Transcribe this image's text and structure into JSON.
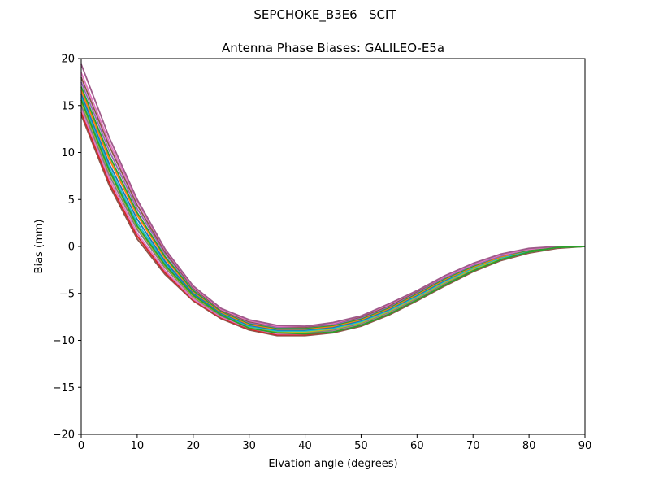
{
  "figure": {
    "suptitle": "SEPCHOKE_B3E6   SCIT"
  },
  "chart_data": {
    "type": "line",
    "title": "Antenna Phase Biases: GALILEO-E5a",
    "xlabel": "Elvation angle (degrees)",
    "ylabel": "Bias (mm)",
    "xlim": [
      0,
      90
    ],
    "ylim": [
      -20,
      20
    ],
    "xticks": [
      0,
      10,
      20,
      30,
      40,
      50,
      60,
      70,
      80,
      90
    ],
    "yticks": [
      -20,
      -15,
      -10,
      -5,
      0,
      5,
      10,
      15,
      20
    ],
    "xtick_labels": [
      "0",
      "10",
      "20",
      "30",
      "40",
      "50",
      "60",
      "70",
      "80",
      "90"
    ],
    "ytick_labels": [
      "−20",
      "−15",
      "−10",
      "−5",
      "0",
      "5",
      "10",
      "15",
      "20"
    ],
    "grid": false,
    "legend": "none",
    "x": [
      0,
      5,
      10,
      15,
      20,
      25,
      30,
      35,
      40,
      45,
      50,
      55,
      60,
      65,
      70,
      75,
      80,
      85,
      90
    ],
    "series": [
      {
        "color": "#8c564b",
        "values": [
          14.0,
          6.5,
          0.8,
          -3.0,
          -5.8,
          -7.7,
          -8.9,
          -9.5,
          -9.5,
          -9.2,
          -8.5,
          -7.3,
          -5.8,
          -4.2,
          -2.7,
          -1.5,
          -0.7,
          -0.2,
          0.0
        ]
      },
      {
        "color": "#d62728",
        "values": [
          14.3,
          6.8,
          1.1,
          -2.8,
          -5.7,
          -7.6,
          -8.8,
          -9.4,
          -9.4,
          -9.1,
          -8.4,
          -7.2,
          -5.7,
          -4.1,
          -2.6,
          -1.4,
          -0.6,
          -0.1,
          0.0
        ]
      },
      {
        "color": "#e377c2",
        "values": [
          14.6,
          7.2,
          1.4,
          -2.6,
          -5.6,
          -7.5,
          -8.7,
          -9.3,
          -9.3,
          -9.0,
          -8.3,
          -7.1,
          -5.6,
          -4.0,
          -2.5,
          -1.4,
          -0.6,
          -0.1,
          0.0
        ]
      },
      {
        "color": "#7f7f7f",
        "values": [
          15.0,
          7.6,
          1.8,
          -2.3,
          -5.4,
          -7.4,
          -8.6,
          -9.2,
          -9.2,
          -8.9,
          -8.2,
          -7.0,
          -5.5,
          -3.9,
          -2.5,
          -1.3,
          -0.5,
          -0.1,
          0.0
        ]
      },
      {
        "color": "#bcbd22",
        "values": [
          15.4,
          8.0,
          2.1,
          -2.1,
          -5.3,
          -7.3,
          -8.6,
          -9.1,
          -9.1,
          -8.8,
          -8.1,
          -6.9,
          -5.4,
          -3.8,
          -2.4,
          -1.3,
          -0.5,
          -0.1,
          0.0
        ]
      },
      {
        "color": "#17becf",
        "values": [
          15.8,
          8.4,
          2.5,
          -1.8,
          -5.1,
          -7.2,
          -8.5,
          -9.0,
          -9.0,
          -8.7,
          -8.0,
          -6.8,
          -5.3,
          -3.7,
          -2.3,
          -1.2,
          -0.5,
          -0.1,
          0.0
        ]
      },
      {
        "color": "#1f77b4",
        "values": [
          16.2,
          8.8,
          2.9,
          -1.6,
          -5.0,
          -7.1,
          -8.4,
          -8.9,
          -8.9,
          -8.6,
          -7.9,
          -6.7,
          -5.2,
          -3.6,
          -2.2,
          -1.1,
          -0.4,
          -0.1,
          0.0
        ]
      },
      {
        "color": "#ff7f0e",
        "values": [
          16.6,
          9.3,
          3.3,
          -1.3,
          -4.8,
          -7.0,
          -8.3,
          -8.8,
          -8.8,
          -8.5,
          -7.8,
          -6.6,
          -5.1,
          -3.5,
          -2.2,
          -1.1,
          -0.4,
          -0.1,
          0.0
        ]
      },
      {
        "color": "#2ca02c",
        "values": [
          17.0,
          9.7,
          3.6,
          -1.1,
          -4.7,
          -6.9,
          -8.2,
          -8.7,
          -8.7,
          -8.4,
          -7.7,
          -6.5,
          -5.0,
          -3.4,
          -2.1,
          -1.0,
          -0.4,
          -0.1,
          0.0
        ]
      },
      {
        "color": "#9467bd",
        "values": [
          17.5,
          10.2,
          4.0,
          -0.8,
          -4.5,
          -6.8,
          -8.1,
          -8.6,
          -8.6,
          -8.3,
          -7.6,
          -6.4,
          -4.9,
          -3.3,
          -2.0,
          -1.0,
          -0.3,
          0.0,
          0.0
        ]
      },
      {
        "color": "#8c564b",
        "values": [
          18.0,
          10.7,
          4.4,
          -0.6,
          -4.4,
          -6.8,
          -8.0,
          -8.5,
          -8.6,
          -8.2,
          -7.5,
          -6.3,
          -4.8,
          -3.2,
          -1.9,
          -0.9,
          -0.3,
          0.0,
          0.0
        ]
      },
      {
        "color": "#e377c2",
        "values": [
          18.5,
          11.1,
          4.8,
          -0.4,
          -4.3,
          -6.7,
          -7.9,
          -8.5,
          -8.5,
          -8.2,
          -7.4,
          -6.2,
          -4.7,
          -3.2,
          -1.9,
          -0.9,
          -0.3,
          0.0,
          0.0
        ]
      },
      {
        "color": "#9e5a8a",
        "values": [
          19.4,
          11.6,
          5.0,
          -0.3,
          -4.2,
          -6.6,
          -7.8,
          -8.4,
          -8.5,
          -8.1,
          -7.4,
          -6.1,
          -4.7,
          -3.1,
          -1.8,
          -0.8,
          -0.2,
          0.0,
          0.0
        ]
      },
      {
        "color": "#2ca02c",
        "values": [
          15.6,
          8.1,
          2.2,
          -2.0,
          -5.2,
          -7.3,
          -8.7,
          -9.2,
          -9.3,
          -9.1,
          -8.4,
          -7.2,
          -5.7,
          -4.1,
          -2.6,
          -1.4,
          -0.6,
          -0.1,
          0.0
        ]
      }
    ]
  }
}
